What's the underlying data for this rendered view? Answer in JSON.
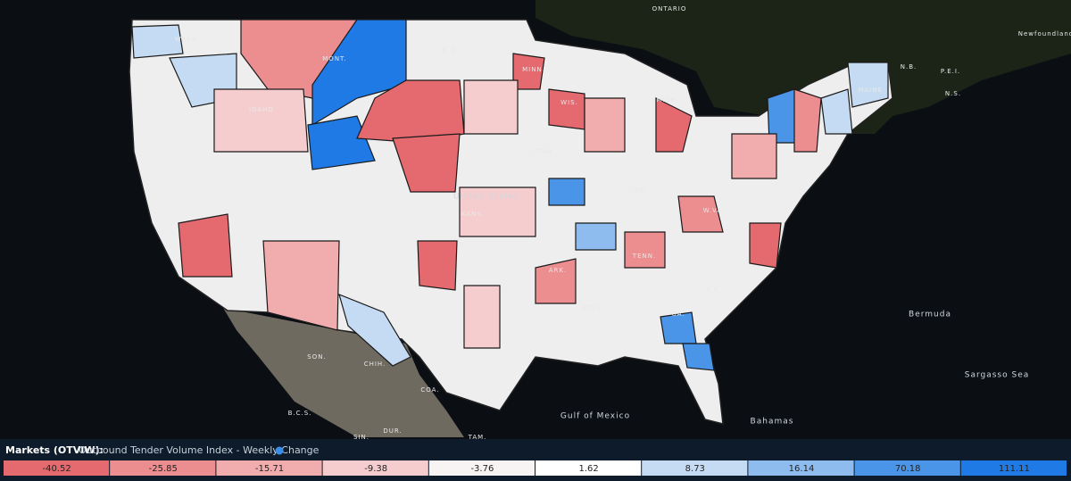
{
  "map_labels": [
    "ONTARIO",
    "Newfoundland",
    "N.B.",
    "P.E.I.",
    "N.S.",
    "MAINE",
    "WASH.",
    "MONT.",
    "N.D.",
    "MINN.",
    "WIS.",
    "MICH.",
    "IDAHO",
    "IOWA",
    "United States",
    "KANS.",
    "IND.",
    "W.VA.",
    "TENN.",
    "ARK.",
    "MISS.",
    "GA.",
    "S.C.",
    "Bermuda",
    "Sargasso Sea",
    "Gulf of Mexico",
    "Bahamas",
    "SON.",
    "CHIH.",
    "COA.",
    "B.C.S.",
    "DUR.",
    "SIN.",
    "TAM."
  ],
  "legend": {
    "title": "Markets (OTVIW):",
    "subtitle": "Outbound Tender Volume Index - Weekly Change",
    "bins": [
      {
        "value": -40.52,
        "color": "#e46a6f"
      },
      {
        "value": -25.85,
        "color": "#ec8d90"
      },
      {
        "value": -15.71,
        "color": "#f1acae"
      },
      {
        "value": -9.38,
        "color": "#f6cdce"
      },
      {
        "value": -3.76,
        "color": "#f8f4f4"
      },
      {
        "value": 1.62,
        "color": "#ffffff"
      },
      {
        "value": 8.73,
        "color": "#c5dbf3"
      },
      {
        "value": 16.14,
        "color": "#8fbcee"
      },
      {
        "value": 70.18,
        "color": "#4a95e8"
      },
      {
        "value": 111.11,
        "color": "#1f7ae6"
      }
    ]
  }
}
